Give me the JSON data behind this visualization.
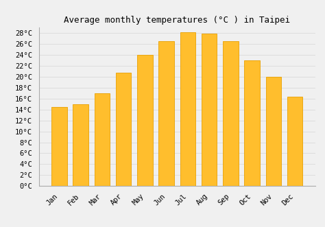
{
  "title": "Average monthly temperatures (°C ) in Taipei",
  "months": [
    "Jan",
    "Feb",
    "Mar",
    "Apr",
    "May",
    "Jun",
    "Jul",
    "Aug",
    "Sep",
    "Oct",
    "Nov",
    "Dec"
  ],
  "values": [
    14.5,
    14.9,
    17.0,
    20.7,
    23.9,
    26.4,
    28.1,
    27.9,
    26.4,
    23.0,
    19.9,
    16.3
  ],
  "bar_color": "#FFBE2D",
  "bar_edge_color": "#E8A000",
  "ylim": [
    0,
    29
  ],
  "yticks": [
    0,
    2,
    4,
    6,
    8,
    10,
    12,
    14,
    16,
    18,
    20,
    22,
    24,
    26,
    28
  ],
  "background_color": "#F0F0F0",
  "grid_color": "#DDDDDD",
  "title_fontsize": 9,
  "tick_fontsize": 7.5
}
